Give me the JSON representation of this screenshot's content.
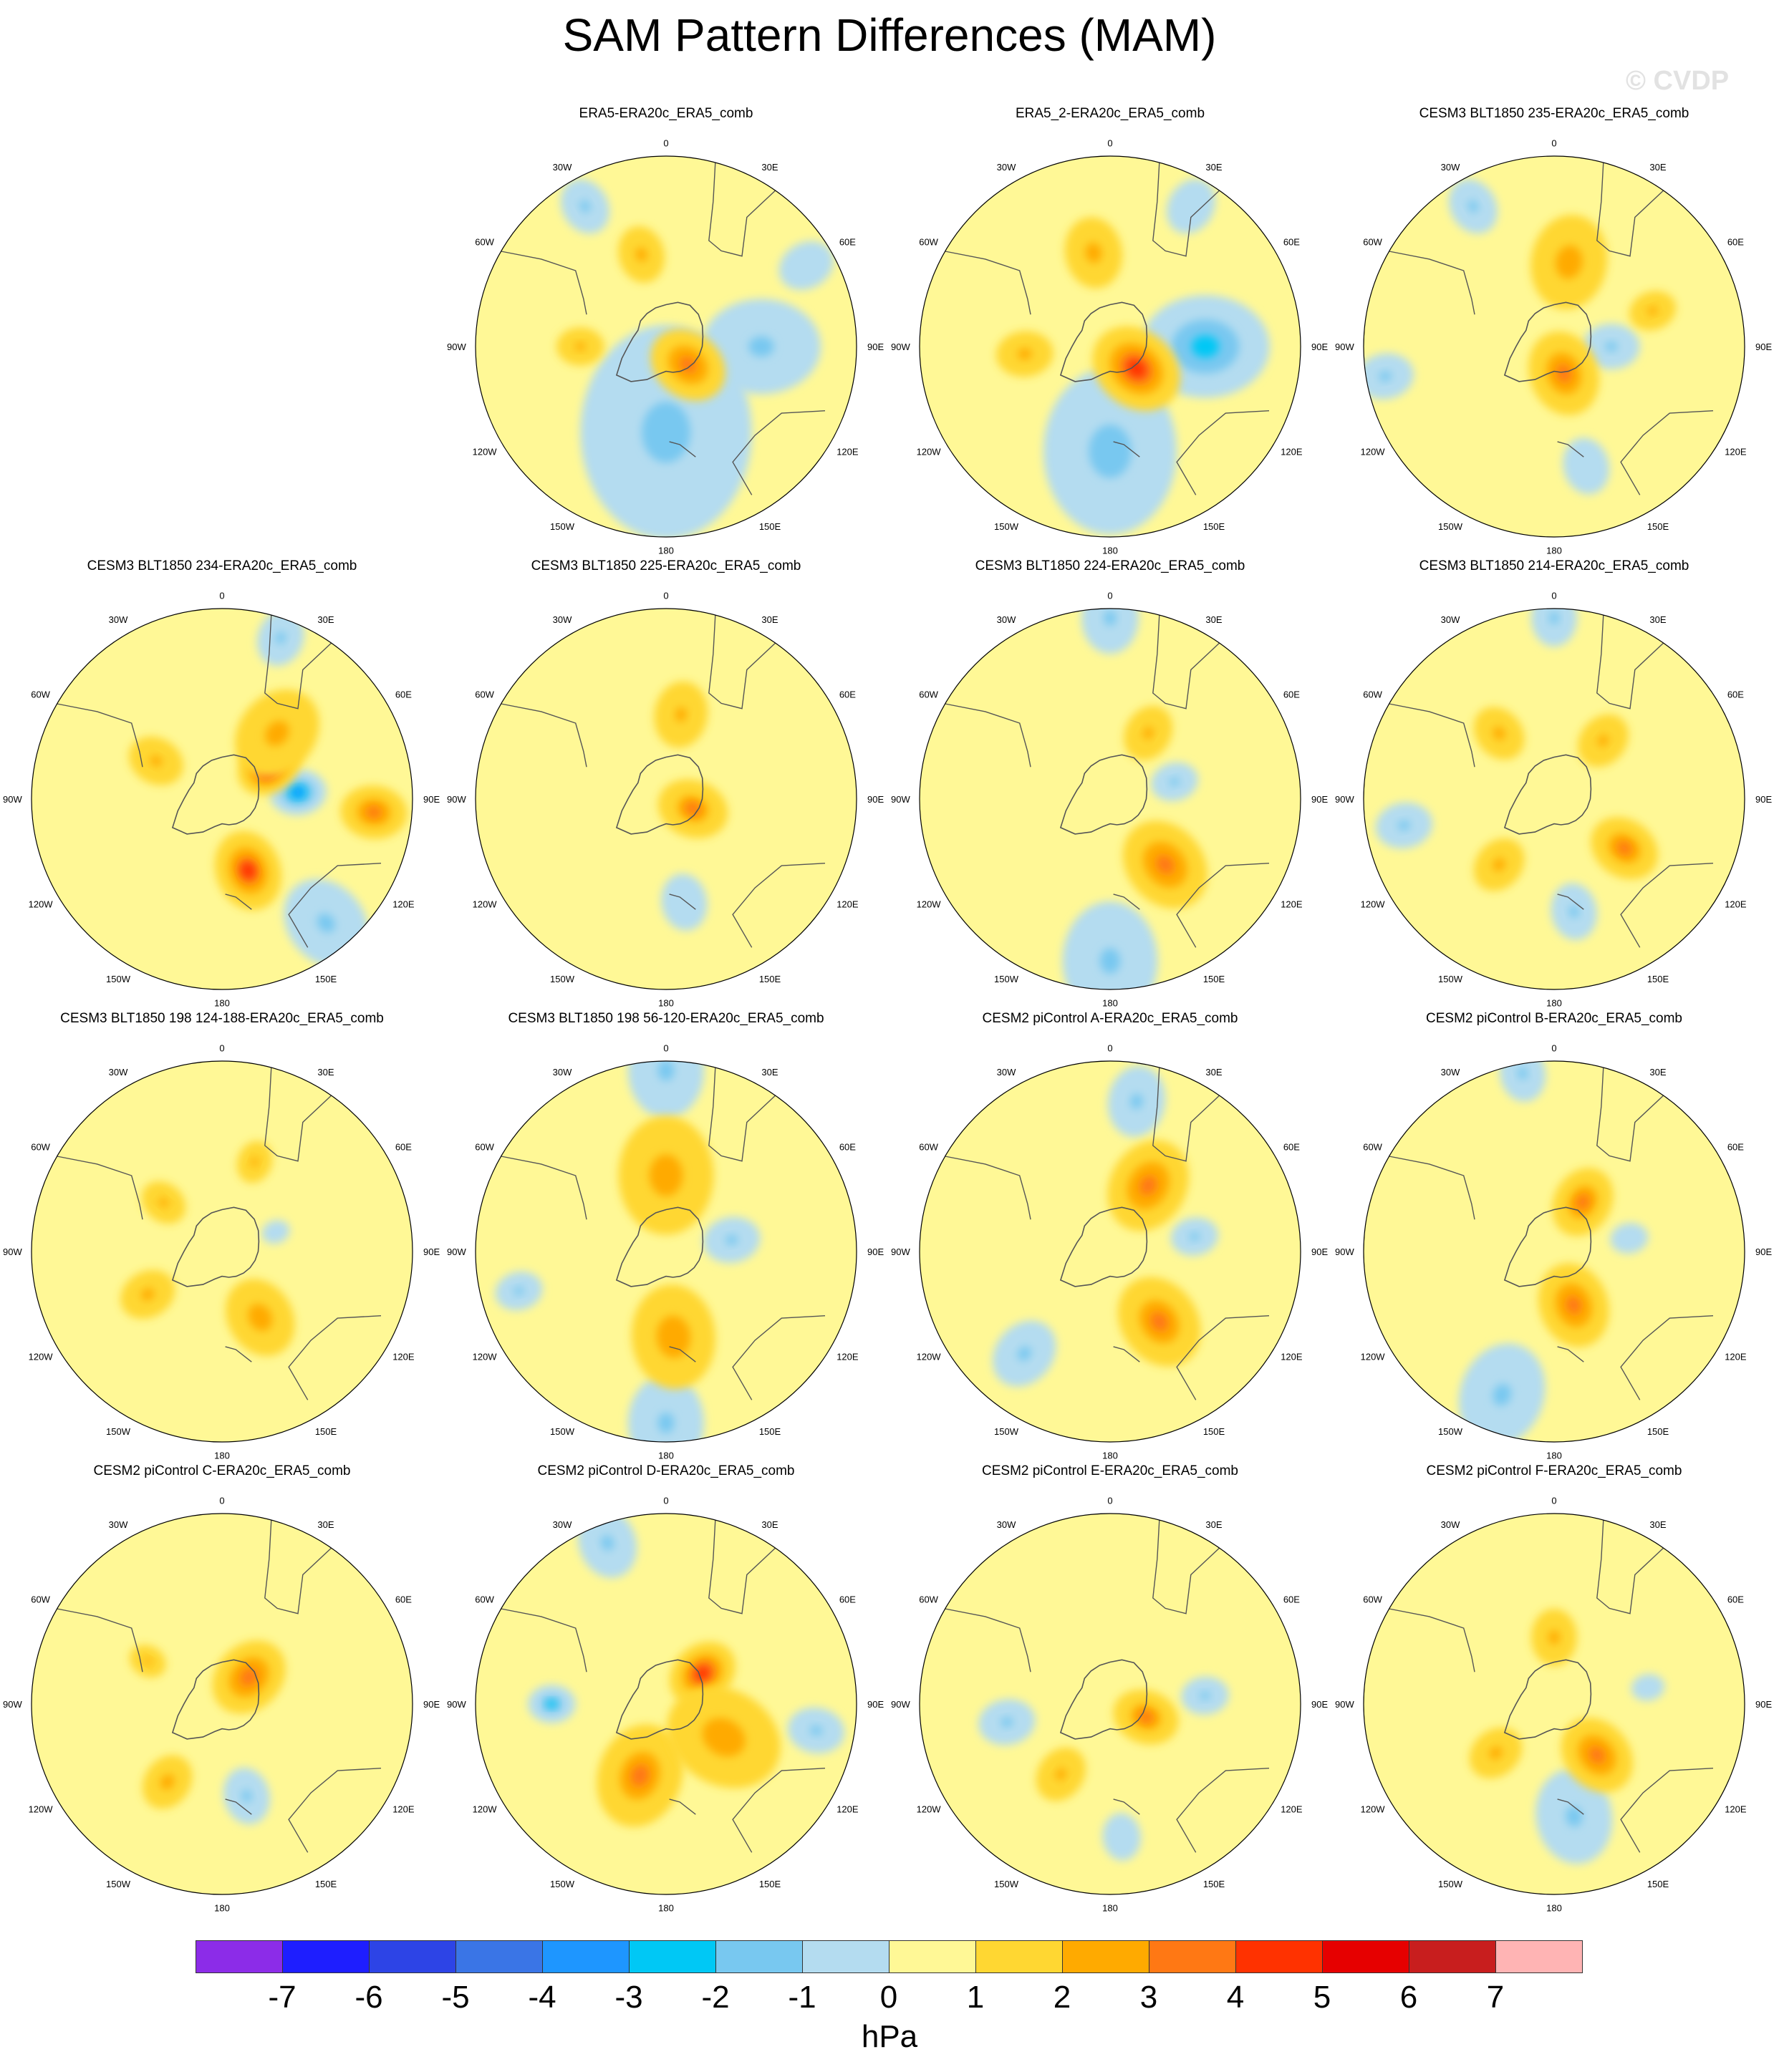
{
  "title": "SAM Pattern Differences (MAM)",
  "watermark": "© CVDP",
  "lon_labels": {
    "top": "0",
    "top_left": "30W",
    "top_right": "30E",
    "upper_left": "60W",
    "upper_right": "60E",
    "left": "90W",
    "right": "90E",
    "lower_left": "120W",
    "lower_right": "120E",
    "bottom_left": "150W",
    "bottom_right": "150E",
    "bottom": "180"
  },
  "panels": [
    {
      "title": "ERA5-ERA20c_ERA5_comb",
      "anomalies": [
        {
          "lon": 180,
          "r": 0.45,
          "v": -1.5,
          "w": 0.45
        },
        {
          "lon": 90,
          "r": 0.5,
          "v": -1.2,
          "w": 0.25
        },
        {
          "lon": 330,
          "r": 0.85,
          "v": -1.1,
          "w": 0.12
        },
        {
          "lon": 60,
          "r": 0.85,
          "v": -1.0,
          "w": 0.12
        },
        {
          "lon": 130,
          "r": 0.15,
          "v": 2.7,
          "w": 0.17
        },
        {
          "lon": 345,
          "r": 0.5,
          "v": 1.4,
          "w": 0.12
        },
        {
          "lon": 270,
          "r": 0.45,
          "v": 1.2,
          "w": 0.1
        }
      ]
    },
    {
      "title": "ERA5_2-ERA20c_ERA5_comb",
      "anomalies": [
        {
          "lon": 90,
          "r": 0.5,
          "v": -2.6,
          "w": 0.27
        },
        {
          "lon": 180,
          "r": 0.55,
          "v": -1.6,
          "w": 0.35
        },
        {
          "lon": 30,
          "r": 0.85,
          "v": -1.0,
          "w": 0.12
        },
        {
          "lon": 130,
          "r": 0.18,
          "v": 3.5,
          "w": 0.2
        },
        {
          "lon": 350,
          "r": 0.5,
          "v": 1.5,
          "w": 0.15
        },
        {
          "lon": 265,
          "r": 0.45,
          "v": 1.4,
          "w": 0.12
        }
      ]
    },
    {
      "title": "CESM3 BLT1850 235-ERA20c_ERA5_comb",
      "anomalies": [
        {
          "lon": 90,
          "r": 0.3,
          "v": -1.2,
          "w": 0.12
        },
        {
          "lon": 330,
          "r": 0.85,
          "v": -1.1,
          "w": 0.12
        },
        {
          "lon": 260,
          "r": 0.9,
          "v": -1.1,
          "w": 0.12
        },
        {
          "lon": 165,
          "r": 0.65,
          "v": -1.0,
          "w": 0.12
        },
        {
          "lon": 160,
          "r": 0.15,
          "v": 2.4,
          "w": 0.18
        },
        {
          "lon": 10,
          "r": 0.45,
          "v": 1.7,
          "w": 0.2
        },
        {
          "lon": 70,
          "r": 0.55,
          "v": 1.2,
          "w": 0.1
        }
      ]
    },
    {
      "title": "CESM3 BLT1850 234-ERA20c_ERA5_comb",
      "anomalies": [
        {
          "lon": 85,
          "r": 0.4,
          "v": -3.2,
          "w": 0.12
        },
        {
          "lon": 140,
          "r": 0.85,
          "v": -1.2,
          "w": 0.2
        },
        {
          "lon": 20,
          "r": 0.9,
          "v": -1.1,
          "w": 0.12
        },
        {
          "lon": 55,
          "r": 0.3,
          "v": 4.5,
          "w": 0.14
        },
        {
          "lon": 160,
          "r": 0.4,
          "v": 3.2,
          "w": 0.17
        },
        {
          "lon": 95,
          "r": 0.8,
          "v": 2.5,
          "w": 0.14
        },
        {
          "lon": 40,
          "r": 0.45,
          "v": 1.5,
          "w": 0.2
        },
        {
          "lon": 300,
          "r": 0.4,
          "v": 1.2,
          "w": 0.12
        }
      ]
    },
    {
      "title": "CESM3 BLT1850 225-ERA20c_ERA5_comb",
      "anomalies": [
        {
          "lon": 170,
          "r": 0.55,
          "v": -1.0,
          "w": 0.12
        },
        {
          "lon": 110,
          "r": 0.15,
          "v": 2.1,
          "w": 0.15
        },
        {
          "lon": 10,
          "r": 0.45,
          "v": 1.3,
          "w": 0.14
        }
      ]
    },
    {
      "title": "CESM3 BLT1850 224-ERA20c_ERA5_comb",
      "anomalies": [
        {
          "lon": 180,
          "r": 0.85,
          "v": -1.2,
          "w": 0.25
        },
        {
          "lon": 0,
          "r": 0.95,
          "v": -1.1,
          "w": 0.15
        },
        {
          "lon": 75,
          "r": 0.35,
          "v": -1.1,
          "w": 0.1
        },
        {
          "lon": 140,
          "r": 0.45,
          "v": 2.6,
          "w": 0.2
        },
        {
          "lon": 30,
          "r": 0.4,
          "v": 1.3,
          "w": 0.12
        }
      ]
    },
    {
      "title": "CESM3 BLT1850 214-ERA20c_ERA5_comb",
      "anomalies": [
        {
          "lon": 170,
          "r": 0.6,
          "v": -1.1,
          "w": 0.12
        },
        {
          "lon": 260,
          "r": 0.8,
          "v": -1.1,
          "w": 0.12
        },
        {
          "lon": 0,
          "r": 0.95,
          "v": -1.1,
          "w": 0.12
        },
        {
          "lon": 125,
          "r": 0.45,
          "v": 2.3,
          "w": 0.15
        },
        {
          "lon": 320,
          "r": 0.45,
          "v": 1.4,
          "w": 0.12
        },
        {
          "lon": 220,
          "r": 0.45,
          "v": 1.4,
          "w": 0.12
        },
        {
          "lon": 40,
          "r": 0.4,
          "v": 1.3,
          "w": 0.12
        }
      ]
    },
    {
      "title": "CESM3 BLT1850 198 124-188-ERA20c_ERA5_comb",
      "anomalies": [
        {
          "lon": 70,
          "r": 0.3,
          "v": -1.0,
          "w": 0.06
        },
        {
          "lon": 150,
          "r": 0.4,
          "v": 1.7,
          "w": 0.17
        },
        {
          "lon": 240,
          "r": 0.45,
          "v": 1.4,
          "w": 0.12
        },
        {
          "lon": 310,
          "r": 0.4,
          "v": 1.3,
          "w": 0.1
        },
        {
          "lon": 20,
          "r": 0.5,
          "v": 1.2,
          "w": 0.09
        }
      ]
    },
    {
      "title": "CESM3 BLT1850 198 56-120-ERA20c_ERA5_comb",
      "anomalies": [
        {
          "lon": 0,
          "r": 0.95,
          "v": -1.2,
          "w": 0.2
        },
        {
          "lon": 180,
          "r": 0.9,
          "v": -1.2,
          "w": 0.2
        },
        {
          "lon": 80,
          "r": 0.35,
          "v": -1.1,
          "w": 0.12
        },
        {
          "lon": 255,
          "r": 0.8,
          "v": -1.1,
          "w": 0.1
        },
        {
          "lon": 175,
          "r": 0.45,
          "v": 1.9,
          "w": 0.22
        },
        {
          "lon": 0,
          "r": 0.4,
          "v": 1.7,
          "w": 0.25
        }
      ]
    },
    {
      "title": "CESM2 piControl A-ERA20c_ERA5_comb",
      "anomalies": [
        {
          "lon": 10,
          "r": 0.8,
          "v": -1.2,
          "w": 0.15
        },
        {
          "lon": 220,
          "r": 0.7,
          "v": -1.2,
          "w": 0.15
        },
        {
          "lon": 80,
          "r": 0.45,
          "v": -1.1,
          "w": 0.1
        },
        {
          "lon": 30,
          "r": 0.4,
          "v": 2.6,
          "w": 0.2
        },
        {
          "lon": 145,
          "r": 0.45,
          "v": 2.3,
          "w": 0.2
        }
      ]
    },
    {
      "title": "CESM2 piControl B-ERA20c_ERA5_comb",
      "anomalies": [
        {
          "lon": 200,
          "r": 0.8,
          "v": -1.3,
          "w": 0.22
        },
        {
          "lon": 350,
          "r": 0.95,
          "v": -1.1,
          "w": 0.12
        },
        {
          "lon": 80,
          "r": 0.4,
          "v": -1.0,
          "w": 0.08
        },
        {
          "lon": 160,
          "r": 0.3,
          "v": 2.6,
          "w": 0.18
        },
        {
          "lon": 30,
          "r": 0.3,
          "v": 2.3,
          "w": 0.15
        }
      ]
    },
    {
      "title": "CESM2 piControl C-ERA20c_ERA5_comb",
      "anomalies": [
        {
          "lon": 165,
          "r": 0.5,
          "v": -1.1,
          "w": 0.12
        },
        {
          "lon": 45,
          "r": 0.2,
          "v": 2.8,
          "w": 0.17
        },
        {
          "lon": 215,
          "r": 0.5,
          "v": 1.5,
          "w": 0.12
        },
        {
          "lon": 300,
          "r": 0.45,
          "v": 1.2,
          "w": 0.08
        }
      ]
    },
    {
      "title": "CESM2 piControl D-ERA20c_ERA5_comb",
      "anomalies": [
        {
          "lon": 270,
          "r": 0.6,
          "v": -2.2,
          "w": 0.1
        },
        {
          "lon": 340,
          "r": 0.9,
          "v": -1.2,
          "w": 0.15
        },
        {
          "lon": 100,
          "r": 0.8,
          "v": -1.1,
          "w": 0.12
        },
        {
          "lon": 50,
          "r": 0.25,
          "v": 3.5,
          "w": 0.15
        },
        {
          "lon": 200,
          "r": 0.4,
          "v": 2.2,
          "w": 0.22
        },
        {
          "lon": 120,
          "r": 0.35,
          "v": 1.8,
          "w": 0.25
        }
      ]
    },
    {
      "title": "CESM2 piControl E-ERA20c_ERA5_comb",
      "anomalies": [
        {
          "lon": 260,
          "r": 0.55,
          "v": -1.2,
          "w": 0.12
        },
        {
          "lon": 85,
          "r": 0.5,
          "v": -1.1,
          "w": 0.1
        },
        {
          "lon": 175,
          "r": 0.7,
          "v": -1.0,
          "w": 0.1
        },
        {
          "lon": 110,
          "r": 0.2,
          "v": 2.2,
          "w": 0.14
        },
        {
          "lon": 215,
          "r": 0.45,
          "v": 1.3,
          "w": 0.12
        }
      ]
    },
    {
      "title": "CESM2 piControl F-ERA20c_ERA5_comb",
      "anomalies": [
        {
          "lon": 170,
          "r": 0.6,
          "v": -1.3,
          "w": 0.2
        },
        {
          "lon": 80,
          "r": 0.5,
          "v": -1.0,
          "w": 0.07
        },
        {
          "lon": 140,
          "r": 0.35,
          "v": 2.7,
          "w": 0.17
        },
        {
          "lon": 230,
          "r": 0.4,
          "v": 1.4,
          "w": 0.12
        },
        {
          "lon": 0,
          "r": 0.35,
          "v": 1.4,
          "w": 0.12
        }
      ]
    }
  ],
  "colorbar": {
    "unit": "hPa",
    "ticks": [
      "-7",
      "-6",
      "-5",
      "-4",
      "-3",
      "-2",
      "-1",
      "0",
      "1",
      "2",
      "3",
      "4",
      "5",
      "6",
      "7"
    ],
    "colors": [
      "#8c2ce8",
      "#1e1eff",
      "#2d44e6",
      "#3a75e6",
      "#1e96ff",
      "#00c8f5",
      "#78c8f0",
      "#b4dcf0",
      "#fff896",
      "#ffd732",
      "#ffaa00",
      "#ff7814",
      "#ff3200",
      "#e60000",
      "#c81e1e",
      "#ffb4b4"
    ]
  }
}
